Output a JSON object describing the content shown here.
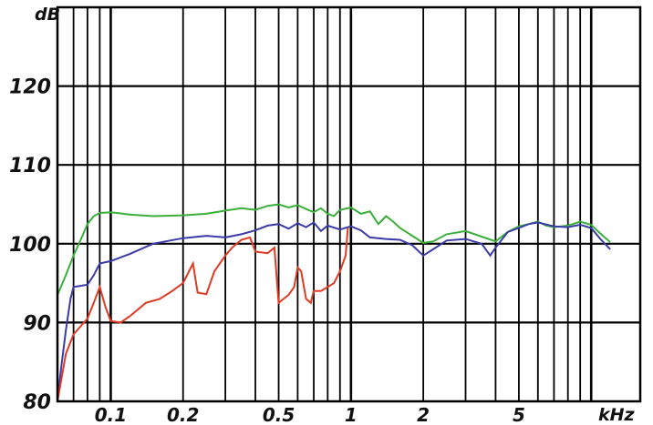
{
  "chart_data": {
    "type": "line",
    "title": "",
    "xlabel": "kHz",
    "ylabel": "dB",
    "x_scale": "log",
    "xlim": [
      0.06,
      16
    ],
    "ylim": [
      80,
      130
    ],
    "grid": true,
    "y_ticks": [
      {
        "value": 120,
        "label": "120"
      },
      {
        "value": 110,
        "label": "110"
      },
      {
        "value": 100,
        "label": "100"
      },
      {
        "value": 90,
        "label": "90"
      },
      {
        "value": 80,
        "label": "80"
      }
    ],
    "x_ticks": [
      {
        "value": 0.1,
        "label": "0.1"
      },
      {
        "value": 0.2,
        "label": "0.2"
      },
      {
        "value": 0.5,
        "label": "0.5"
      },
      {
        "value": 1,
        "label": "1"
      },
      {
        "value": 2,
        "label": "2"
      },
      {
        "value": 5,
        "label": "5"
      }
    ],
    "x_unit_label": "kHz",
    "y_unit_label": "dB",
    "series": [
      {
        "color": "#3ab03a",
        "points": [
          [
            0.06,
            93.5
          ],
          [
            0.065,
            96
          ],
          [
            0.07,
            98.5
          ],
          [
            0.075,
            100.5
          ],
          [
            0.08,
            102.5
          ],
          [
            0.085,
            103.5
          ],
          [
            0.09,
            103.9
          ],
          [
            0.1,
            104
          ],
          [
            0.12,
            103.7
          ],
          [
            0.15,
            103.5
          ],
          [
            0.2,
            103.6
          ],
          [
            0.25,
            103.8
          ],
          [
            0.3,
            104.2
          ],
          [
            0.35,
            104.5
          ],
          [
            0.4,
            104.3
          ],
          [
            0.45,
            104.8
          ],
          [
            0.5,
            105
          ],
          [
            0.55,
            104.6
          ],
          [
            0.6,
            104.9
          ],
          [
            0.65,
            104.4
          ],
          [
            0.7,
            104
          ],
          [
            0.75,
            104.5
          ],
          [
            0.8,
            103.8
          ],
          [
            0.85,
            103.5
          ],
          [
            0.9,
            104.3
          ],
          [
            1.0,
            104.6
          ],
          [
            1.1,
            103.8
          ],
          [
            1.2,
            104.1
          ],
          [
            1.3,
            102.5
          ],
          [
            1.4,
            103.5
          ],
          [
            1.5,
            102.8
          ],
          [
            1.6,
            102
          ],
          [
            1.8,
            101
          ],
          [
            2.0,
            100.1
          ],
          [
            2.2,
            100.3
          ],
          [
            2.5,
            101.2
          ],
          [
            3.0,
            101.6
          ],
          [
            3.5,
            100.9
          ],
          [
            4.0,
            100.3
          ],
          [
            4.5,
            101.5
          ],
          [
            5.0,
            102.2
          ],
          [
            5.5,
            102.5
          ],
          [
            6.0,
            102.8
          ],
          [
            6.5,
            102.3
          ],
          [
            7.0,
            102.1
          ],
          [
            8.0,
            102.3
          ],
          [
            9.0,
            102.8
          ],
          [
            10.0,
            102.4
          ],
          [
            11.0,
            101.2
          ],
          [
            12.0,
            100.2
          ]
        ]
      },
      {
        "color": "#3a3aa8",
        "points": [
          [
            0.06,
            80
          ],
          [
            0.062,
            84
          ],
          [
            0.065,
            89
          ],
          [
            0.068,
            93
          ],
          [
            0.07,
            94.5
          ],
          [
            0.08,
            94.8
          ],
          [
            0.085,
            96
          ],
          [
            0.09,
            97.5
          ],
          [
            0.1,
            97.8
          ],
          [
            0.12,
            98.7
          ],
          [
            0.15,
            100
          ],
          [
            0.2,
            100.7
          ],
          [
            0.25,
            101
          ],
          [
            0.3,
            100.8
          ],
          [
            0.35,
            101.2
          ],
          [
            0.4,
            101.7
          ],
          [
            0.45,
            102.3
          ],
          [
            0.5,
            102.5
          ],
          [
            0.55,
            101.9
          ],
          [
            0.6,
            102.6
          ],
          [
            0.65,
            102.1
          ],
          [
            0.7,
            102.7
          ],
          [
            0.75,
            101.6
          ],
          [
            0.8,
            102.3
          ],
          [
            0.9,
            101.8
          ],
          [
            1.0,
            102.2
          ],
          [
            1.1,
            101.7
          ],
          [
            1.2,
            100.8
          ],
          [
            1.4,
            100.6
          ],
          [
            1.6,
            100.5
          ],
          [
            1.8,
            99.8
          ],
          [
            2.0,
            98.5
          ],
          [
            2.2,
            99.3
          ],
          [
            2.5,
            100.4
          ],
          [
            3.0,
            100.6
          ],
          [
            3.5,
            100
          ],
          [
            3.8,
            98.5
          ],
          [
            4.0,
            99.5
          ],
          [
            4.5,
            101.5
          ],
          [
            5.0,
            102
          ],
          [
            5.5,
            102.5
          ],
          [
            6.0,
            102.7
          ],
          [
            7.0,
            102.2
          ],
          [
            8.0,
            102.1
          ],
          [
            9.0,
            102.4
          ],
          [
            10.0,
            102
          ],
          [
            11.0,
            100.5
          ],
          [
            12.0,
            99.3
          ]
        ]
      },
      {
        "color": "#e03a22",
        "points": [
          [
            0.06,
            80
          ],
          [
            0.065,
            86
          ],
          [
            0.07,
            88.5
          ],
          [
            0.08,
            90.5
          ],
          [
            0.085,
            92.5
          ],
          [
            0.09,
            94.5
          ],
          [
            0.095,
            92
          ],
          [
            0.1,
            90.2
          ],
          [
            0.11,
            90
          ],
          [
            0.12,
            90.8
          ],
          [
            0.14,
            92.5
          ],
          [
            0.16,
            93
          ],
          [
            0.18,
            94
          ],
          [
            0.2,
            95
          ],
          [
            0.22,
            97.5
          ],
          [
            0.23,
            93.8
          ],
          [
            0.25,
            93.6
          ],
          [
            0.27,
            96.5
          ],
          [
            0.3,
            98.5
          ],
          [
            0.32,
            99.5
          ],
          [
            0.35,
            100.5
          ],
          [
            0.38,
            100.8
          ],
          [
            0.4,
            99
          ],
          [
            0.45,
            98.8
          ],
          [
            0.48,
            99.5
          ],
          [
            0.5,
            92.5
          ],
          [
            0.55,
            93.5
          ],
          [
            0.58,
            94.5
          ],
          [
            0.6,
            97
          ],
          [
            0.62,
            96.5
          ],
          [
            0.65,
            93
          ],
          [
            0.68,
            92.5
          ],
          [
            0.7,
            94
          ],
          [
            0.75,
            94
          ],
          [
            0.8,
            94.5
          ],
          [
            0.85,
            95
          ],
          [
            0.9,
            96.5
          ],
          [
            0.95,
            98.5
          ],
          [
            0.97,
            102
          ]
        ]
      }
    ]
  }
}
